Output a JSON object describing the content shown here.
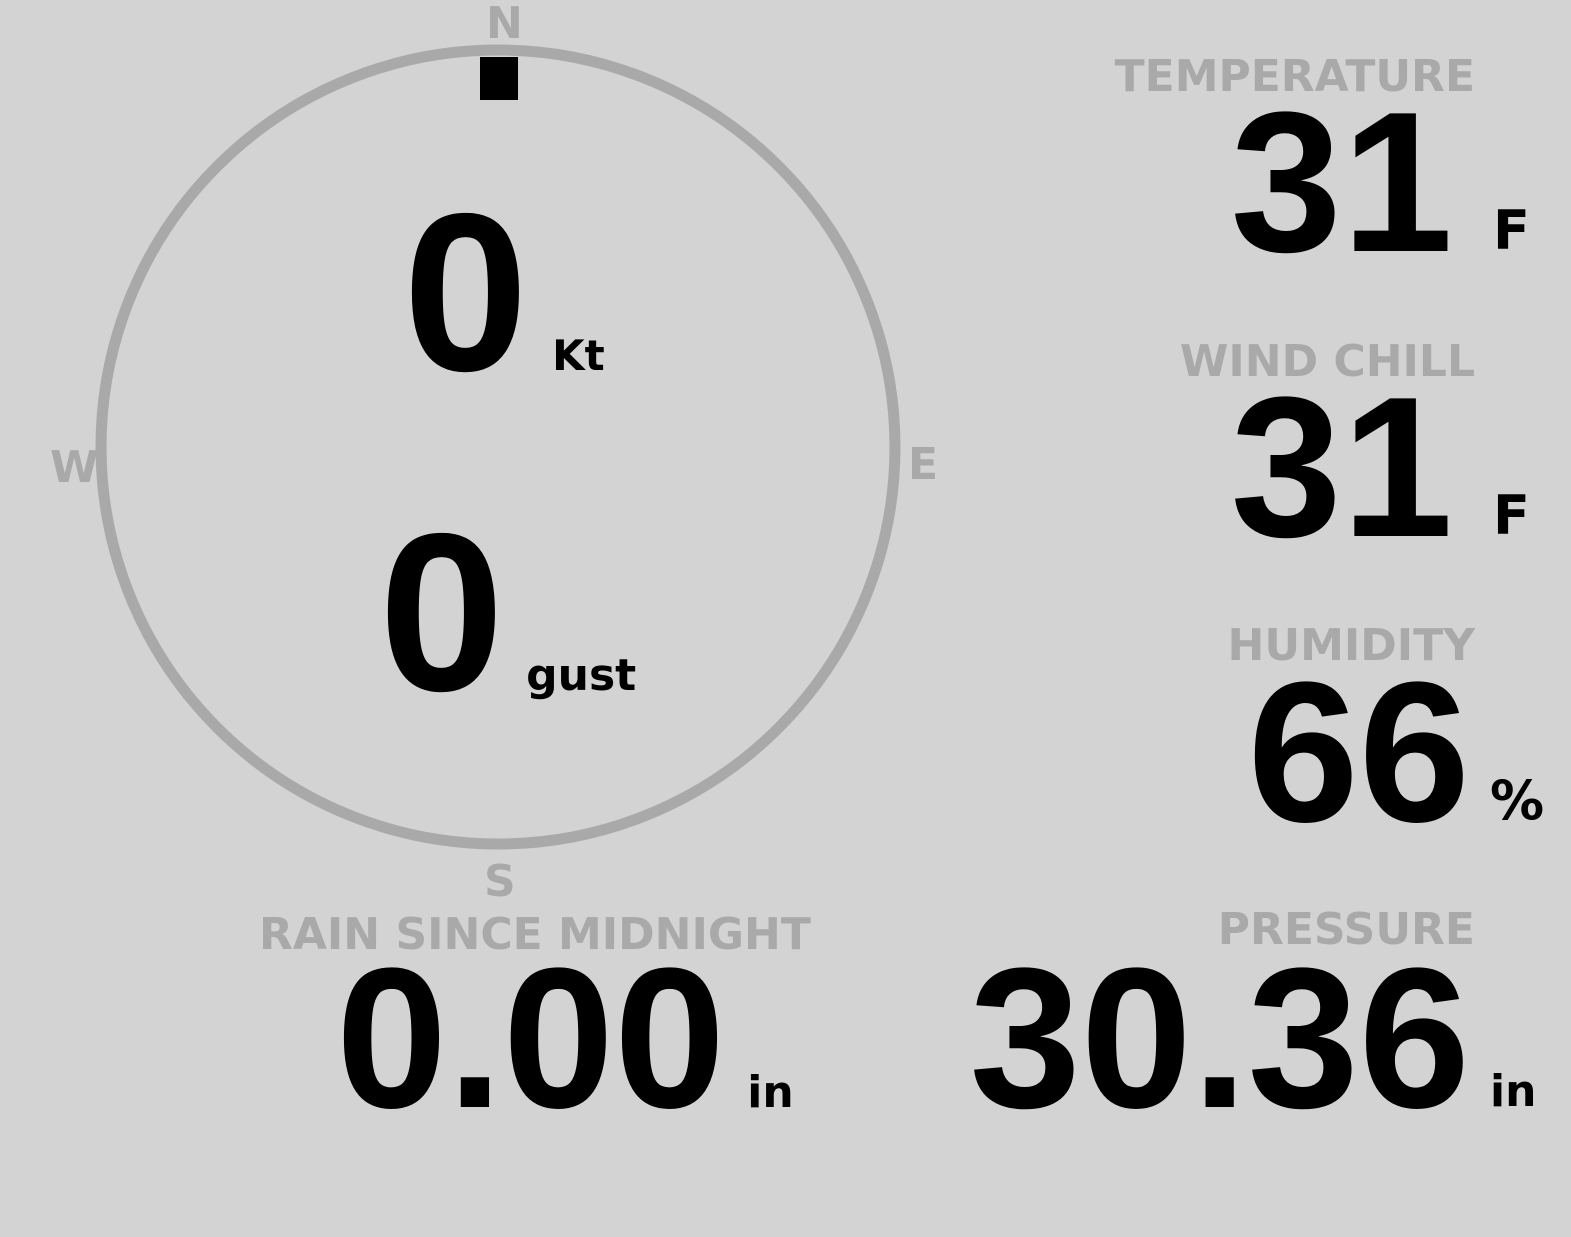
{
  "colors": {
    "background": "#d3d3d3",
    "label": "#a9a9a9",
    "value": "#000000"
  },
  "compass": {
    "north": "N",
    "south": "S",
    "east": "E",
    "west": "W",
    "wind_direction_deg": 0
  },
  "wind": {
    "speed": "0",
    "speed_unit": "Kt",
    "gust": "0",
    "gust_unit": "gust"
  },
  "temperature": {
    "label": "TEMPERATURE",
    "value": "31",
    "unit": "F"
  },
  "wind_chill": {
    "label": "WIND CHILL",
    "value": "31",
    "unit": "F"
  },
  "humidity": {
    "label": "HUMIDITY",
    "value": "66",
    "unit": "%"
  },
  "rain": {
    "label": "RAIN SINCE MIDNIGHT",
    "value": "0.00",
    "unit": "in"
  },
  "pressure": {
    "label": "PRESSURE",
    "value": "30.36",
    "unit": "in"
  }
}
